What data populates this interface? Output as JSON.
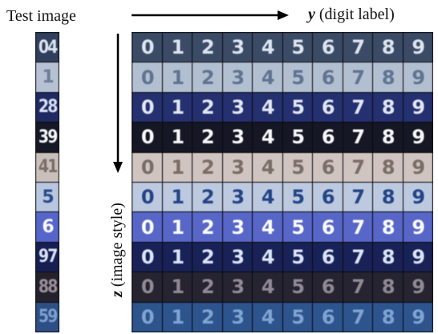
{
  "header": {
    "test_image_label": "Test image",
    "y_var": "y",
    "y_text": " (digit label)",
    "z_var": "z",
    "z_text": " (image style)"
  },
  "test_images": [
    {
      "text": "04",
      "bg": "#2f3f5c",
      "fg": "#dce3f0"
    },
    {
      "text": "1",
      "bg": "#b6c2d3",
      "fg": "#6d7e97"
    },
    {
      "text": "28",
      "bg": "#1f2a63",
      "fg": "#d8dff0"
    },
    {
      "text": "39",
      "bg": "#161826",
      "fg": "#f3f5f8"
    },
    {
      "text": "41",
      "bg": "#c9c0bb",
      "fg": "#7b6d67"
    },
    {
      "text": "5",
      "bg": "#b8c7df",
      "fg": "#2a4a8c"
    },
    {
      "text": "6",
      "bg": "#5665c9",
      "fg": "#f8faff"
    },
    {
      "text": "97",
      "bg": "#171f52",
      "fg": "#d9e0f6"
    },
    {
      "text": "88",
      "bg": "#24212d",
      "fg": "#9b8f98"
    },
    {
      "text": "59",
      "bg": "#2e4f85",
      "fg": "#7ba0ce"
    }
  ],
  "digits": [
    "0",
    "1",
    "2",
    "3",
    "4",
    "5",
    "6",
    "7",
    "8",
    "9"
  ],
  "styles": [
    {
      "bg": "#3b4b66",
      "fg": "#dde4ef"
    },
    {
      "bg": "#b2bfd0",
      "fg": "#607392"
    },
    {
      "bg": "#243070",
      "fg": "#e1e6f3"
    },
    {
      "bg": "#151724",
      "fg": "#f6f7fa"
    },
    {
      "bg": "#cfc4bf",
      "fg": "#7a6c66"
    },
    {
      "bg": "#bcc9df",
      "fg": "#234486"
    },
    {
      "bg": "#5766c7",
      "fg": "#fbfcff"
    },
    {
      "bg": "#192257",
      "fg": "#dbe3f8"
    },
    {
      "bg": "#262430",
      "fg": "#8f8a94"
    },
    {
      "bg": "#2d548d",
      "fg": "#80a4d2"
    }
  ]
}
